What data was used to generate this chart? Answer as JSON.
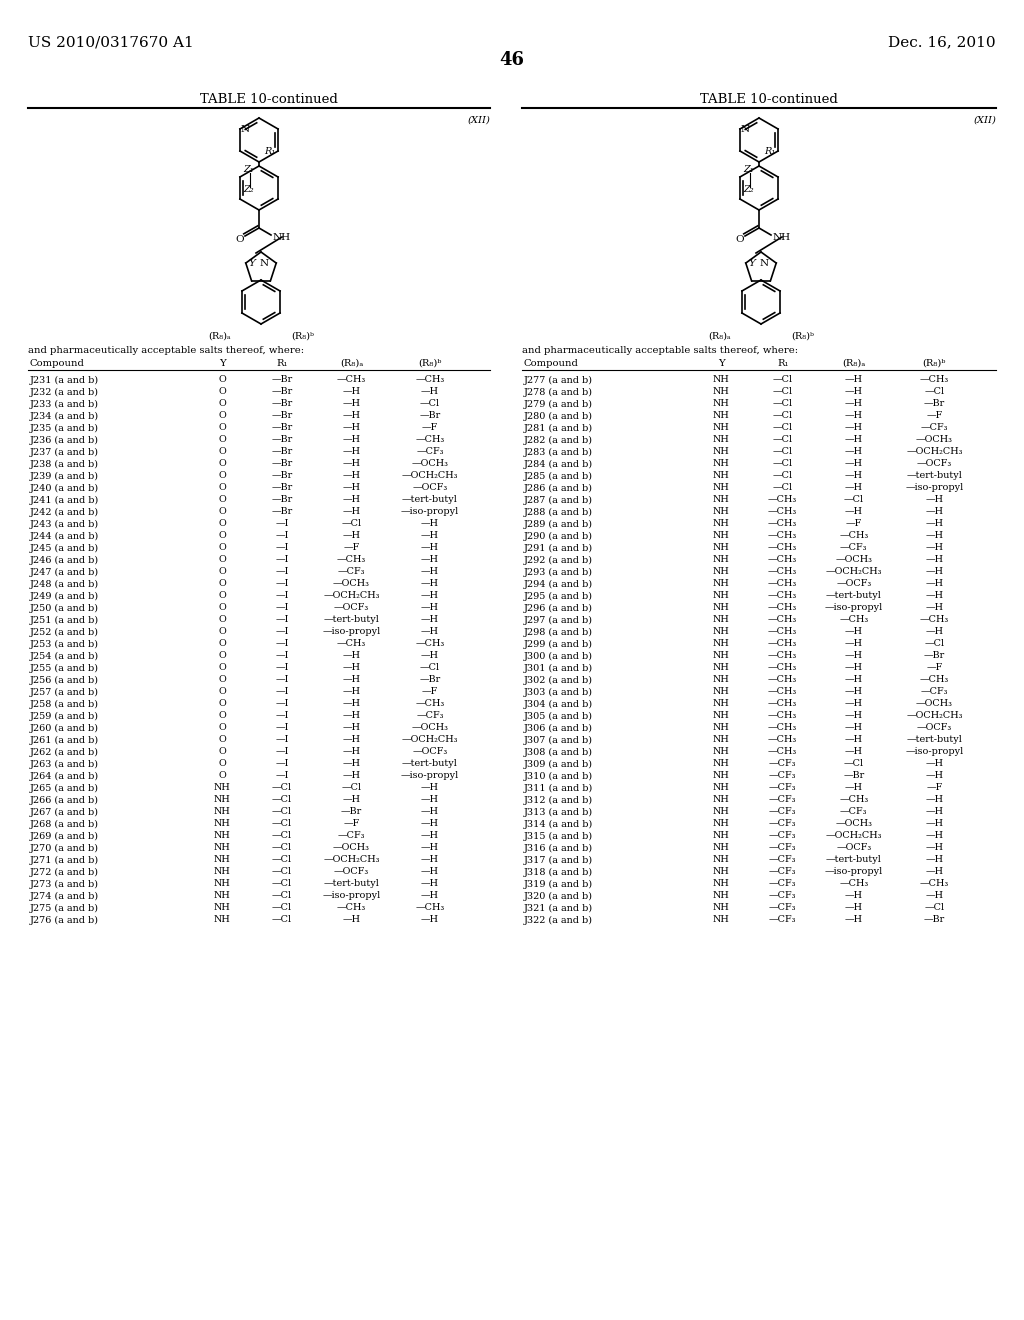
{
  "header_left": "US 2010/0317670 A1",
  "header_right": "Dec. 16, 2010",
  "page_number": "46",
  "table_title": "TABLE 10-continued",
  "formula_label": "(XII)",
  "structure_caption": "and pharmaceutically acceptable salts thereof, where:",
  "col_headers": [
    "Compound",
    "Y",
    "R₁",
    "(R₈)ₐ",
    "(R₈)ᵇ"
  ],
  "left_table": [
    [
      "J231 (a and b)",
      "O",
      "—Br",
      "—CH₃",
      "—CH₃"
    ],
    [
      "J232 (a and b)",
      "O",
      "—Br",
      "—H",
      "—H"
    ],
    [
      "J233 (a and b)",
      "O",
      "—Br",
      "—H",
      "—Cl"
    ],
    [
      "J234 (a and b)",
      "O",
      "—Br",
      "—H",
      "—Br"
    ],
    [
      "J235 (a and b)",
      "O",
      "—Br",
      "—H",
      "—F"
    ],
    [
      "J236 (a and b)",
      "O",
      "—Br",
      "—H",
      "—CH₃"
    ],
    [
      "J237 (a and b)",
      "O",
      "—Br",
      "—H",
      "—CF₃"
    ],
    [
      "J238 (a and b)",
      "O",
      "—Br",
      "—H",
      "—OCH₃"
    ],
    [
      "J239 (a and b)",
      "O",
      "—Br",
      "—H",
      "—OCH₂CH₃"
    ],
    [
      "J240 (a and b)",
      "O",
      "—Br",
      "—H",
      "—OCF₃"
    ],
    [
      "J241 (a and b)",
      "O",
      "—Br",
      "—H",
      "—tert-butyl"
    ],
    [
      "J242 (a and b)",
      "O",
      "—Br",
      "—H",
      "—iso-propyl"
    ],
    [
      "J243 (a and b)",
      "O",
      "—I",
      "—Cl",
      "—H"
    ],
    [
      "J244 (a and b)",
      "O",
      "—I",
      "—H",
      "—H"
    ],
    [
      "J245 (a and b)",
      "O",
      "—I",
      "—F",
      "—H"
    ],
    [
      "J246 (a and b)",
      "O",
      "—I",
      "—CH₃",
      "—H"
    ],
    [
      "J247 (a and b)",
      "O",
      "—I",
      "—CF₃",
      "—H"
    ],
    [
      "J248 (a and b)",
      "O",
      "—I",
      "—OCH₃",
      "—H"
    ],
    [
      "J249 (a and b)",
      "O",
      "—I",
      "—OCH₂CH₃",
      "—H"
    ],
    [
      "J250 (a and b)",
      "O",
      "—I",
      "—OCF₃",
      "—H"
    ],
    [
      "J251 (a and b)",
      "O",
      "—I",
      "—tert-butyl",
      "—H"
    ],
    [
      "J252 (a and b)",
      "O",
      "—I",
      "—iso-propyl",
      "—H"
    ],
    [
      "J253 (a and b)",
      "O",
      "—I",
      "—CH₃",
      "—CH₃"
    ],
    [
      "J254 (a and b)",
      "O",
      "—I",
      "—H",
      "—H"
    ],
    [
      "J255 (a and b)",
      "O",
      "—I",
      "—H",
      "—Cl"
    ],
    [
      "J256 (a and b)",
      "O",
      "—I",
      "—H",
      "—Br"
    ],
    [
      "J257 (a and b)",
      "O",
      "—I",
      "—H",
      "—F"
    ],
    [
      "J258 (a and b)",
      "O",
      "—I",
      "—H",
      "—CH₃"
    ],
    [
      "J259 (a and b)",
      "O",
      "—I",
      "—H",
      "—CF₃"
    ],
    [
      "J260 (a and b)",
      "O",
      "—I",
      "—H",
      "—OCH₃"
    ],
    [
      "J261 (a and b)",
      "O",
      "—I",
      "—H",
      "—OCH₂CH₃"
    ],
    [
      "J262 (a and b)",
      "O",
      "—I",
      "—H",
      "—OCF₃"
    ],
    [
      "J263 (a and b)",
      "O",
      "—I",
      "—H",
      "—tert-butyl"
    ],
    [
      "J264 (a and b)",
      "O",
      "—I",
      "—H",
      "—iso-propyl"
    ],
    [
      "J265 (a and b)",
      "NH",
      "—Cl",
      "—Cl",
      "—H"
    ],
    [
      "J266 (a and b)",
      "NH",
      "—Cl",
      "—H",
      "—H"
    ],
    [
      "J267 (a and b)",
      "NH",
      "—Cl",
      "—Br",
      "—H"
    ],
    [
      "J268 (a and b)",
      "NH",
      "—Cl",
      "—F",
      "—H"
    ],
    [
      "J269 (a and b)",
      "NH",
      "—Cl",
      "—CF₃",
      "—H"
    ],
    [
      "J270 (a and b)",
      "NH",
      "—Cl",
      "—OCH₃",
      "—H"
    ],
    [
      "J271 (a and b)",
      "NH",
      "—Cl",
      "—OCH₂CH₃",
      "—H"
    ],
    [
      "J272 (a and b)",
      "NH",
      "—Cl",
      "—OCF₃",
      "—H"
    ],
    [
      "J273 (a and b)",
      "NH",
      "—Cl",
      "—tert-butyl",
      "—H"
    ],
    [
      "J274 (a and b)",
      "NH",
      "—Cl",
      "—iso-propyl",
      "—H"
    ],
    [
      "J275 (a and b)",
      "NH",
      "—Cl",
      "—CH₃",
      "—CH₃"
    ],
    [
      "J276 (a and b)",
      "NH",
      "—Cl",
      "—H",
      "—H"
    ]
  ],
  "right_table": [
    [
      "J277 (a and b)",
      "NH",
      "—Cl",
      "—H",
      "—CH₃"
    ],
    [
      "J278 (a and b)",
      "NH",
      "—Cl",
      "—H",
      "—Cl"
    ],
    [
      "J279 (a and b)",
      "NH",
      "—Cl",
      "—H",
      "—Br"
    ],
    [
      "J280 (a and b)",
      "NH",
      "—Cl",
      "—H",
      "—F"
    ],
    [
      "J281 (a and b)",
      "NH",
      "—Cl",
      "—H",
      "—CF₃"
    ],
    [
      "J282 (a and b)",
      "NH",
      "—Cl",
      "—H",
      "—OCH₃"
    ],
    [
      "J283 (a and b)",
      "NH",
      "—Cl",
      "—H",
      "—OCH₂CH₃"
    ],
    [
      "J284 (a and b)",
      "NH",
      "—Cl",
      "—H",
      "—OCF₃"
    ],
    [
      "J285 (a and b)",
      "NH",
      "—Cl",
      "—H",
      "—tert-butyl"
    ],
    [
      "J286 (a and b)",
      "NH",
      "—Cl",
      "—H",
      "—iso-propyl"
    ],
    [
      "J287 (a and b)",
      "NH",
      "—CH₃",
      "—Cl",
      "—H"
    ],
    [
      "J288 (a and b)",
      "NH",
      "—CH₃",
      "—H",
      "—H"
    ],
    [
      "J289 (a and b)",
      "NH",
      "—CH₃",
      "—F",
      "—H"
    ],
    [
      "J290 (a and b)",
      "NH",
      "—CH₃",
      "—CH₃",
      "—H"
    ],
    [
      "J291 (a and b)",
      "NH",
      "—CH₃",
      "—CF₃",
      "—H"
    ],
    [
      "J292 (a and b)",
      "NH",
      "—CH₃",
      "—OCH₃",
      "—H"
    ],
    [
      "J293 (a and b)",
      "NH",
      "—CH₃",
      "—OCH₂CH₃",
      "—H"
    ],
    [
      "J294 (a and b)",
      "NH",
      "—CH₃",
      "—OCF₃",
      "—H"
    ],
    [
      "J295 (a and b)",
      "NH",
      "—CH₃",
      "—tert-butyl",
      "—H"
    ],
    [
      "J296 (a and b)",
      "NH",
      "—CH₃",
      "—iso-propyl",
      "—H"
    ],
    [
      "J297 (a and b)",
      "NH",
      "—CH₃",
      "—CH₃",
      "—CH₃"
    ],
    [
      "J298 (a and b)",
      "NH",
      "—CH₃",
      "—H",
      "—H"
    ],
    [
      "J299 (a and b)",
      "NH",
      "—CH₃",
      "—H",
      "—Cl"
    ],
    [
      "J300 (a and b)",
      "NH",
      "—CH₃",
      "—H",
      "—Br"
    ],
    [
      "J301 (a and b)",
      "NH",
      "—CH₃",
      "—H",
      "—F"
    ],
    [
      "J302 (a and b)",
      "NH",
      "—CH₃",
      "—H",
      "—CH₃"
    ],
    [
      "J303 (a and b)",
      "NH",
      "—CH₃",
      "—H",
      "—CF₃"
    ],
    [
      "J304 (a and b)",
      "NH",
      "—CH₃",
      "—H",
      "—OCH₃"
    ],
    [
      "J305 (a and b)",
      "NH",
      "—CH₃",
      "—H",
      "—OCH₂CH₃"
    ],
    [
      "J306 (a and b)",
      "NH",
      "—CH₃",
      "—H",
      "—OCF₃"
    ],
    [
      "J307 (a and b)",
      "NH",
      "—CH₃",
      "—H",
      "—tert-butyl"
    ],
    [
      "J308 (a and b)",
      "NH",
      "—CH₃",
      "—H",
      "—iso-propyl"
    ],
    [
      "J309 (a and b)",
      "NH",
      "—CF₃",
      "—Cl",
      "—H"
    ],
    [
      "J310 (a and b)",
      "NH",
      "—CF₃",
      "—Br",
      "—H"
    ],
    [
      "J311 (a and b)",
      "NH",
      "—CF₃",
      "—H",
      "—F"
    ],
    [
      "J312 (a and b)",
      "NH",
      "—CF₃",
      "—CH₃",
      "—H"
    ],
    [
      "J313 (a and b)",
      "NH",
      "—CF₃",
      "—CF₃",
      "—H"
    ],
    [
      "J314 (a and b)",
      "NH",
      "—CF₃",
      "—OCH₃",
      "—H"
    ],
    [
      "J315 (a and b)",
      "NH",
      "—CF₃",
      "—OCH₂CH₃",
      "—H"
    ],
    [
      "J316 (a and b)",
      "NH",
      "—CF₃",
      "—OCF₃",
      "—H"
    ],
    [
      "J317 (a and b)",
      "NH",
      "—CF₃",
      "—tert-butyl",
      "—H"
    ],
    [
      "J318 (a and b)",
      "NH",
      "—CF₃",
      "—iso-propyl",
      "—H"
    ],
    [
      "J319 (a and b)",
      "NH",
      "—CF₃",
      "—CH₃",
      "—CH₃"
    ],
    [
      "J320 (a and b)",
      "NH",
      "—CF₃",
      "—H",
      "—H"
    ],
    [
      "J321 (a and b)",
      "NH",
      "—CF₃",
      "—H",
      "—Cl"
    ],
    [
      "J322 (a and b)",
      "NH",
      "—CF₃",
      "—H",
      "—Br"
    ]
  ]
}
